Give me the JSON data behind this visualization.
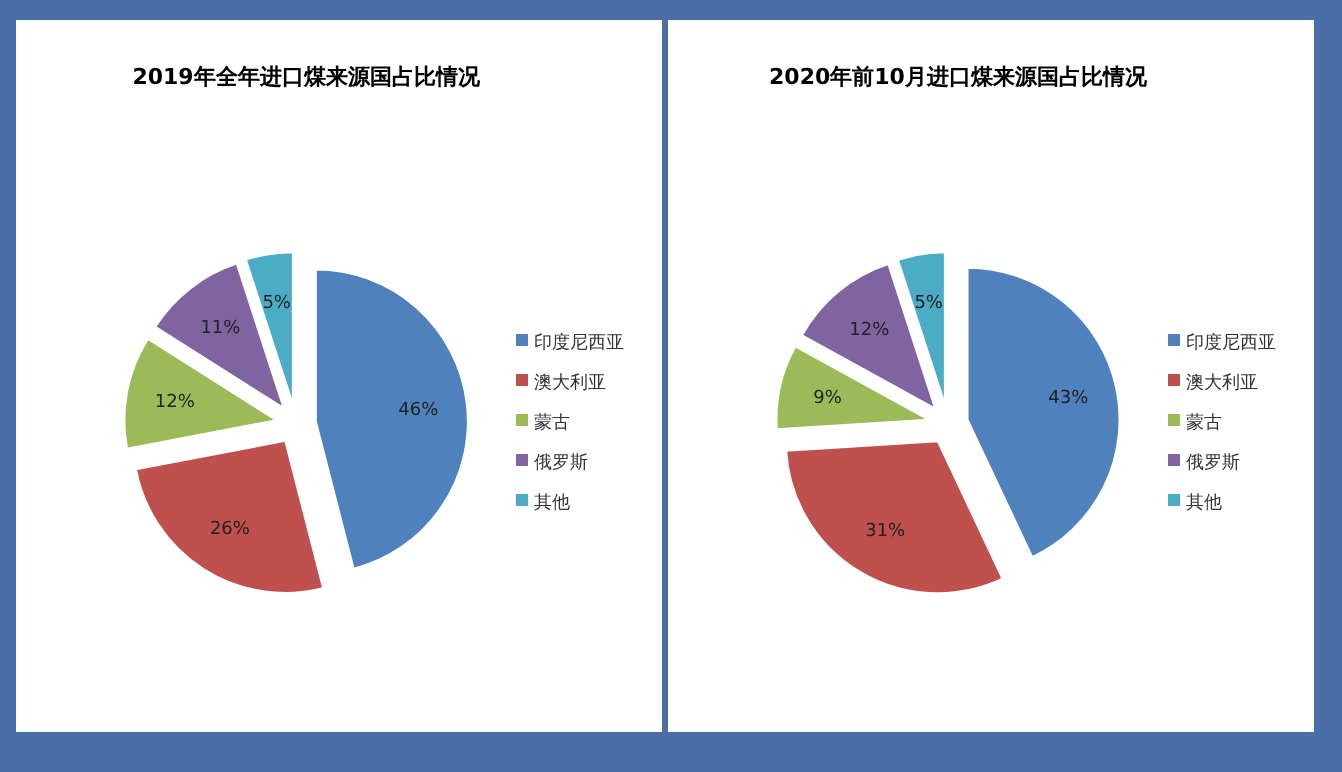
{
  "chart_data": [
    {
      "type": "pie",
      "title": "2019年全年进口煤来源国占比情况",
      "categories": [
        "印度尼西亚",
        "澳大利亚",
        "蒙古",
        "俄罗斯",
        "其他"
      ],
      "values": [
        46,
        26,
        12,
        11,
        5
      ],
      "value_labels": [
        "46%",
        "26%",
        "12%",
        "11%",
        "5%"
      ],
      "colors": [
        "#4f81bd",
        "#c0504d",
        "#9bbb59",
        "#8064a2",
        "#4bacc6"
      ],
      "legend": "right"
    },
    {
      "type": "pie",
      "title": "2020年前10月进口煤来源国占比情况",
      "categories": [
        "印度尼西亚",
        "澳大利亚",
        "蒙古",
        "俄罗斯",
        "其他"
      ],
      "values": [
        43,
        31,
        9,
        12,
        5
      ],
      "value_labels": [
        "43%",
        "31%",
        "9%",
        "12%",
        "5%"
      ],
      "colors": [
        "#4f81bd",
        "#c0504d",
        "#9bbb59",
        "#8064a2",
        "#4bacc6"
      ],
      "legend": "right"
    }
  ]
}
